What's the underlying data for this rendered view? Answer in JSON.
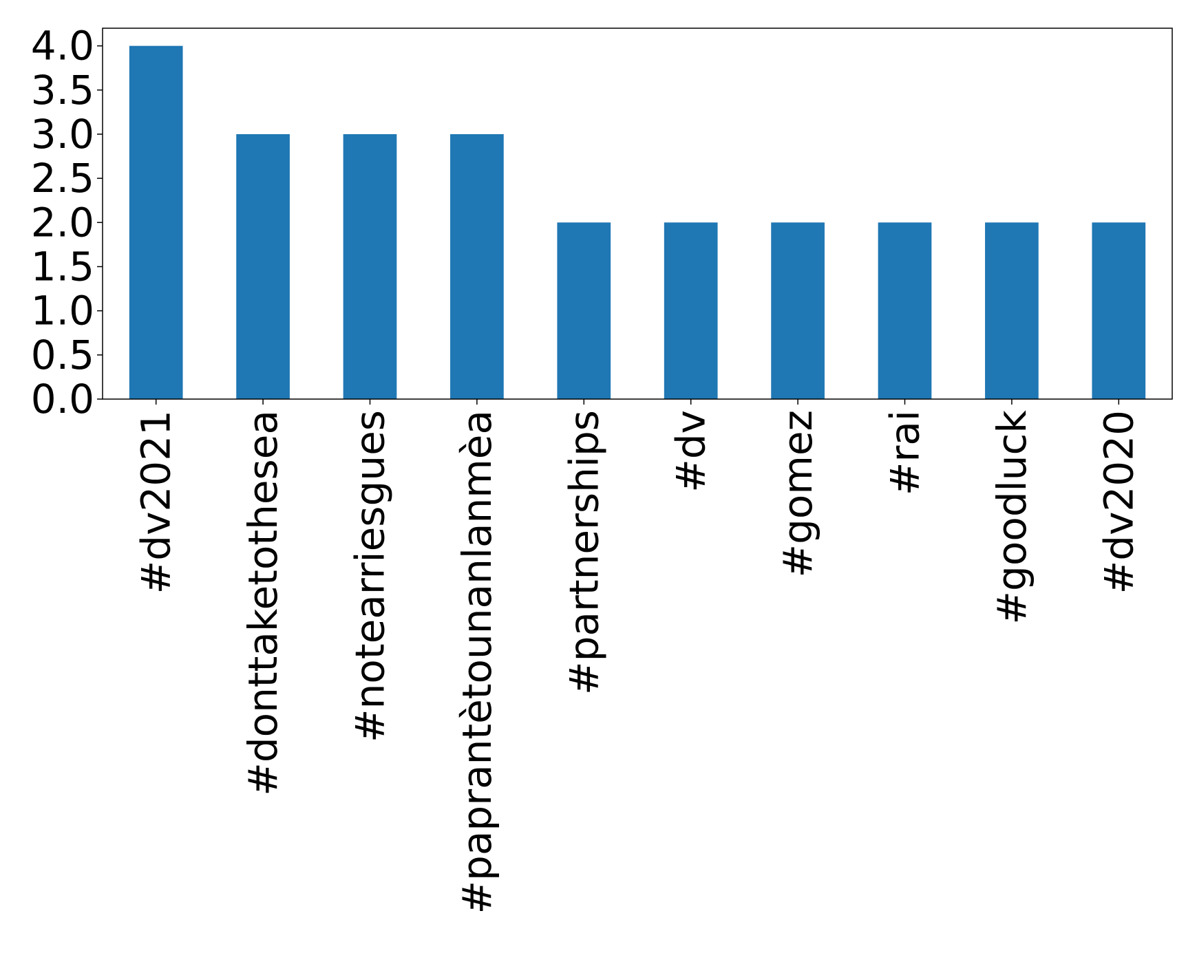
{
  "chart_data": {
    "type": "bar",
    "title": "",
    "xlabel": "",
    "ylabel": "",
    "categories": [
      "#dv2021",
      "#donttaketothesea",
      "#notearriesgues",
      "#paprantètounanlanmèa",
      "#partnerships",
      "#dv",
      "#gomez",
      "#rai",
      "#goodluck",
      "#dv2020"
    ],
    "values": [
      4,
      3,
      3,
      3,
      2,
      2,
      2,
      2,
      2,
      2
    ],
    "ylim": [
      0,
      4.2
    ],
    "yticks": [
      0.0,
      0.5,
      1.0,
      1.5,
      2.0,
      2.5,
      3.0,
      3.5,
      4.0
    ],
    "ytick_labels": [
      "0.0",
      "0.5",
      "1.0",
      "1.5",
      "2.0",
      "2.5",
      "3.0",
      "3.5",
      "4.0"
    ],
    "bar_color": "#1f77b4",
    "grid": false,
    "legend": "none"
  }
}
